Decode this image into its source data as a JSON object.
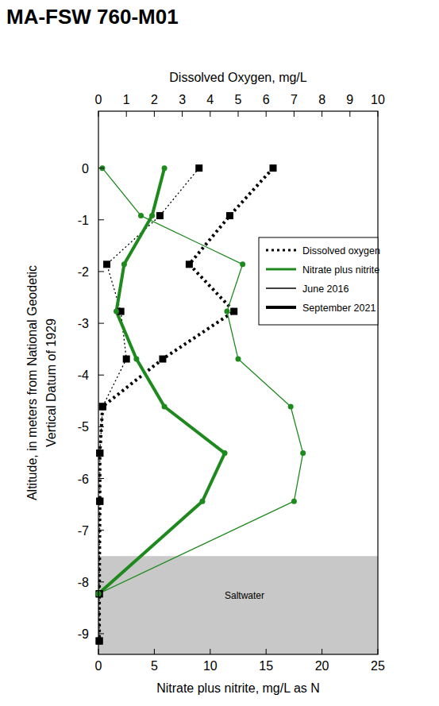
{
  "chart_data": {
    "type": "line",
    "title": "MA-FSW  760-M01",
    "xlabel": "Nitrate plus nitrite, mg/L as N",
    "x2label": "Dissolved Oxygen, mg/L",
    "ylabel": [
      "Altitude, in meters from National Geodetic",
      "Vertical Datum of 1929"
    ],
    "xlim": [
      0,
      25
    ],
    "xticks": [
      0,
      5,
      10,
      15,
      20,
      25
    ],
    "x2lim": [
      0,
      10
    ],
    "x2ticks": [
      0,
      1,
      2,
      3,
      4,
      5,
      6,
      7,
      8,
      9,
      10
    ],
    "ylim": [
      -9.4,
      1.1
    ],
    "yticks": [
      0,
      -1,
      -2,
      -3,
      -4,
      -5,
      -6,
      -7,
      -8,
      -9
    ],
    "legend": "right",
    "legend_items": [
      {
        "label": "Dissolved oxygen",
        "line_style": "dotted",
        "color": "#000000"
      },
      {
        "label": "Nitrate plus nitrite",
        "line_style": "solid",
        "color": "#1e8a1e"
      },
      {
        "label": "June 2016",
        "line_style": "thin",
        "color": "#000000"
      },
      {
        "label": "September 2021",
        "line_style": "thick",
        "color": "#000000"
      }
    ],
    "shaded_regions": [
      {
        "label": "Saltwater",
        "from": -7.5,
        "to": -9.4,
        "color": "#c8c8c8"
      }
    ],
    "series": [
      {
        "variable": "Dissolved oxygen",
        "period": "June 2016",
        "axis": "x2",
        "color": "#000000",
        "marker": "square",
        "x": [
          3.6,
          2.2,
          0.3,
          0.8,
          1.0,
          0.15,
          0.05,
          0.05,
          0.03,
          0.03
        ],
        "y": [
          0.0,
          -0.92,
          -1.86,
          -2.77,
          -3.69,
          -4.61,
          -5.51,
          -6.44,
          -8.23,
          -9.14
        ]
      },
      {
        "variable": "Dissolved oxygen",
        "period": "September 2021",
        "axis": "x2",
        "color": "#000000",
        "marker": "square",
        "x": [
          6.25,
          4.7,
          3.25,
          4.85,
          2.3,
          0.15,
          0.05,
          0.05,
          0.03,
          0.03
        ],
        "y": [
          0.0,
          -0.92,
          -1.86,
          -2.77,
          -3.69,
          -4.61,
          -5.51,
          -6.44,
          -8.23,
          -9.14
        ]
      },
      {
        "variable": "Nitrate plus nitrite",
        "period": "June 2016",
        "color": "#1e8a1e",
        "marker": "circle",
        "x": [
          0.35,
          3.8,
          12.9,
          11.5,
          12.5,
          17.2,
          18.3,
          17.5,
          0.0
        ],
        "y": [
          0.0,
          -0.92,
          -1.86,
          -2.77,
          -3.69,
          -4.61,
          -5.51,
          -6.44,
          -8.23
        ]
      },
      {
        "variable": "Nitrate plus nitrite",
        "period": "September 2021",
        "color": "#1e8a1e",
        "marker": "circle",
        "x": [
          5.9,
          4.8,
          2.3,
          1.6,
          3.4,
          5.9,
          11.3,
          9.3,
          0.0
        ],
        "y": [
          0.0,
          -0.92,
          -1.86,
          -2.77,
          -3.69,
          -4.61,
          -5.51,
          -6.44,
          -8.23
        ]
      }
    ]
  }
}
